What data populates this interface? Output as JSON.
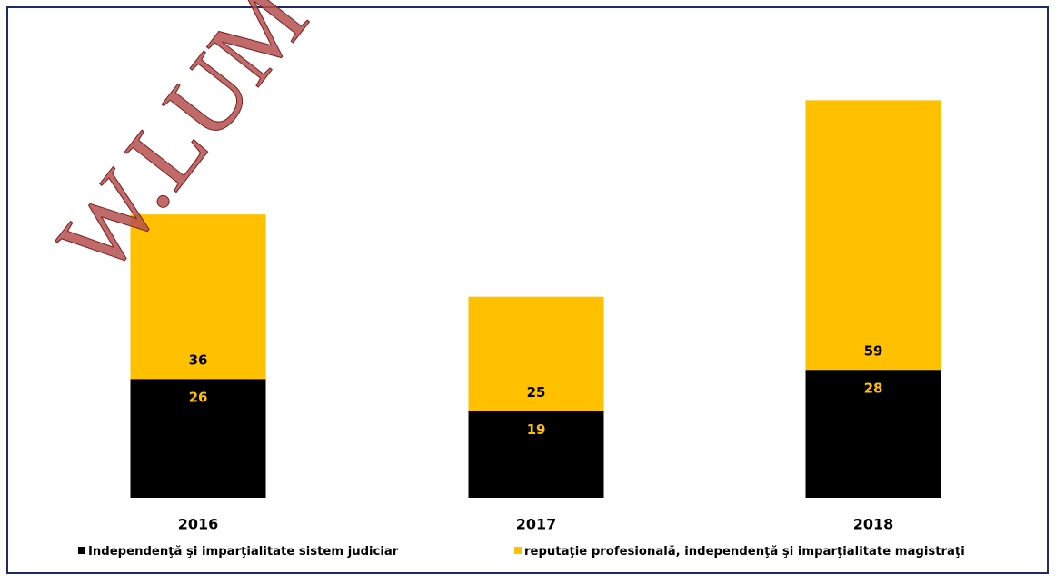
{
  "chart_data": {
    "type": "stacked_bar",
    "categories": [
      "2016",
      "2017",
      "2018"
    ],
    "series": [
      {
        "name": "Independenţă şi imparţialitate sistem judiciar",
        "color": "#000000",
        "label_color": "#FFC000",
        "values": [
          26,
          19,
          28
        ]
      },
      {
        "name": "reputaţie profesională, independenţă şi imparţialitate magistraţi",
        "color": "#FFC000",
        "label_color": "#000000",
        "values": [
          36,
          25,
          59
        ]
      }
    ],
    "watermark": "W.LUM"
  }
}
